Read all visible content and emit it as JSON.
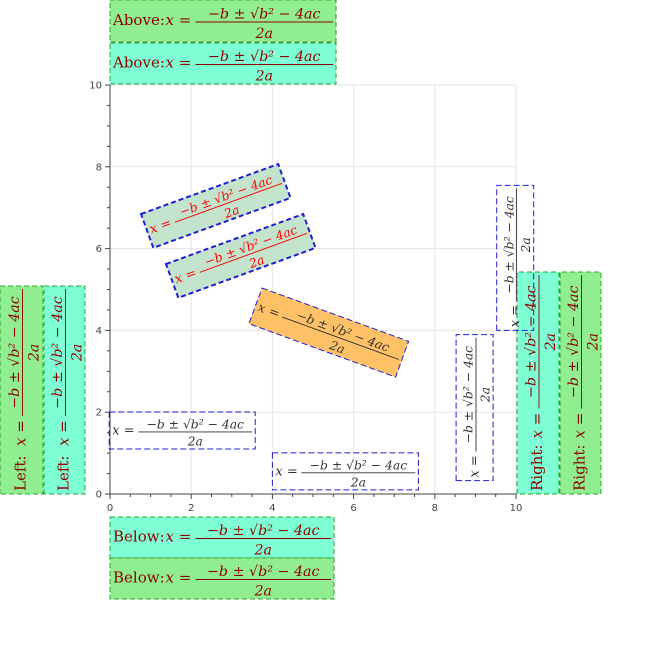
{
  "colors": {
    "background": "#ffffff",
    "grid": "#e5e5e5",
    "axis": "#444444",
    "green": "#90ee90",
    "aquamarine": "#7fffd4",
    "orange": "#ffc165",
    "pale_green": "#c4e3cd",
    "outer_border": "#2ca02c",
    "outer_text": "#8b0000",
    "inner_border": "#1f1fd0",
    "inner_text": "#333333",
    "red_text": "#ff0000"
  },
  "formula": {
    "lhs": "x =",
    "numerator": "−b ± √b² − 4ac",
    "denominator": "2a"
  },
  "chart_data": {
    "type": "scatter",
    "title": "",
    "xlabel": "",
    "ylabel": "",
    "xlim": [
      0,
      10
    ],
    "ylim": [
      0,
      10
    ],
    "grid": true,
    "x_ticks": [
      "0",
      "2",
      "4",
      "6",
      "8",
      "10"
    ],
    "y_ticks": [
      "0",
      "2",
      "4",
      "6",
      "8",
      "10"
    ],
    "annotations": [
      {
        "prefix": "Above: ",
        "placement": "above plot (outer)",
        "fill": "green"
      },
      {
        "prefix": "Above: ",
        "placement": "above plot (inner)",
        "fill": "aquamarine"
      },
      {
        "prefix": "Below: ",
        "placement": "below plot (inner)",
        "fill": "aquamarine"
      },
      {
        "prefix": "Below: ",
        "placement": "below plot (outer)",
        "fill": "green"
      },
      {
        "prefix": "Left: ",
        "placement": "left of plot (outer)",
        "fill": "green",
        "angle": 90
      },
      {
        "prefix": "Left: ",
        "placement": "left of plot (inner)",
        "fill": "aquamarine",
        "angle": 90
      },
      {
        "prefix": "Right: ",
        "placement": "right of plot (inner)",
        "fill": "aquamarine",
        "angle": 90
      },
      {
        "prefix": "Right: ",
        "placement": "right of plot (outer)",
        "fill": "green",
        "angle": 90
      },
      {
        "prefix": "",
        "x": 0.4,
        "y": 1.1,
        "angle": 0,
        "fill": "none"
      },
      {
        "prefix": "",
        "x": 4.0,
        "y": 0.1,
        "angle": 0,
        "fill": "none"
      },
      {
        "prefix": "",
        "x": 8.5,
        "y": 0.4,
        "angle": 90,
        "fill": "none"
      },
      {
        "prefix": "",
        "x": 9.5,
        "y": 4.0,
        "angle": 90,
        "fill": "none"
      },
      {
        "prefix": "",
        "x": 3.6,
        "y": 3.5,
        "angle": -20,
        "fill": "orange"
      },
      {
        "prefix": "",
        "x": 0.8,
        "y": 6.0,
        "angle": 20,
        "fill": "pale_green",
        "text_color": "red"
      },
      {
        "prefix": "",
        "x": 1.4,
        "y": 4.8,
        "angle": 20,
        "fill": "pale_green",
        "text_color": "red"
      }
    ]
  }
}
